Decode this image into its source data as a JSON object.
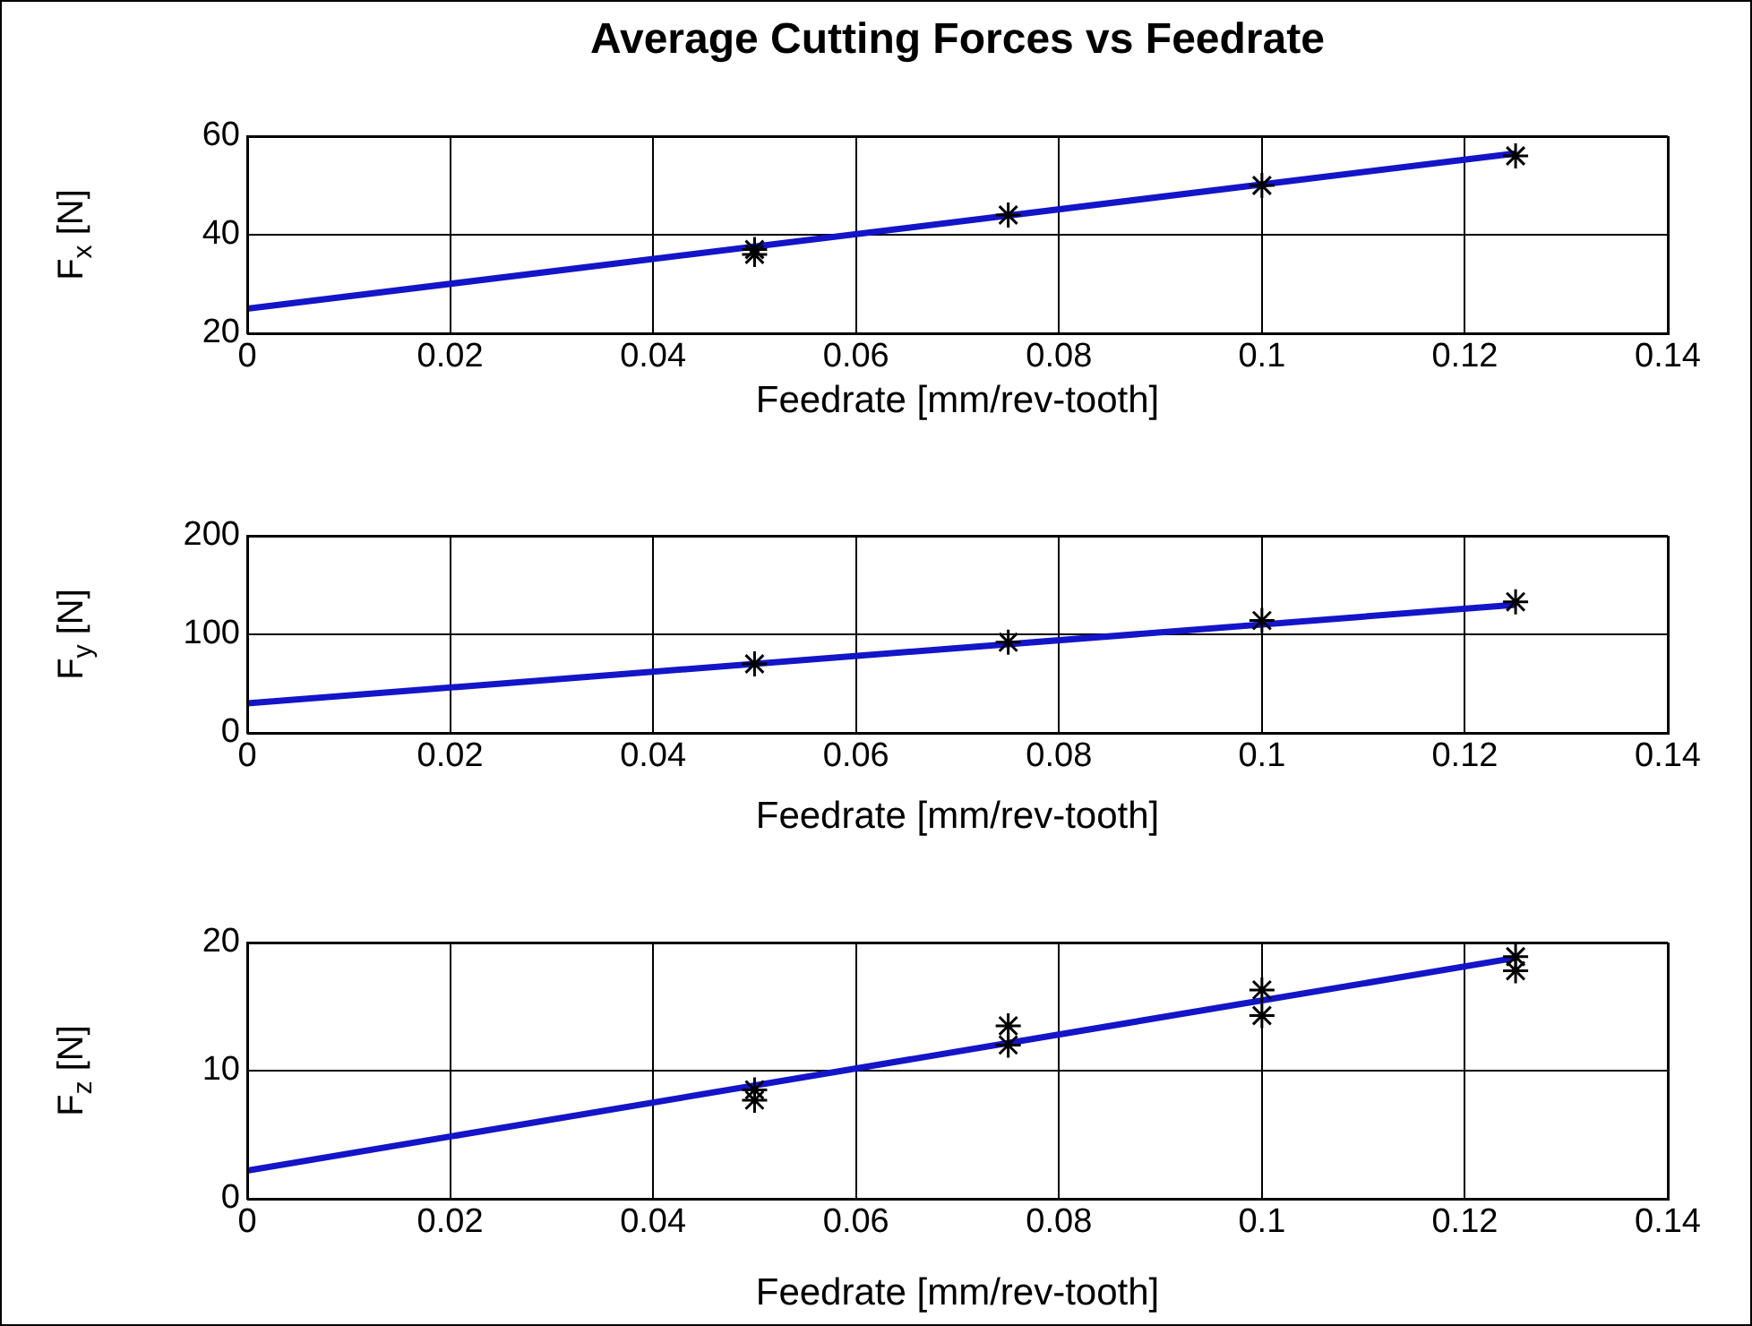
{
  "chart_data": [
    {
      "type": "scatter",
      "title": "Average Cutting Forces vs Feedrate",
      "xlabel": "Feedrate [mm/rev-tooth]",
      "ylabel": "F$_{x}$ [N]",
      "xlim": [
        0,
        0.14
      ],
      "xticks": [
        0,
        0.02,
        0.04,
        0.06,
        0.08,
        0.1,
        0.12,
        0.14
      ],
      "ylim": [
        20,
        60
      ],
      "yticks": [
        20,
        40,
        60
      ],
      "grid": true,
      "legend": false,
      "series": [
        {
          "type": "scatter",
          "color": "#000000",
          "marker": "cross",
          "x": [
            0.05,
            0.05,
            0.075,
            0.1,
            0.125
          ],
          "values": [
            37,
            36,
            44,
            50,
            56
          ]
        },
        {
          "type": "line",
          "color": "#1414c8",
          "marker": "none",
          "line_style": "solid",
          "x": [
            0,
            0.125
          ],
          "values": [
            25,
            56.5
          ]
        }
      ]
    },
    {
      "type": "scatter",
      "xlabel": "Feedrate [mm/rev-tooth]",
      "ylabel": "F$_{y}$ [N]",
      "xlim": [
        0,
        0.14
      ],
      "xticks": [
        0,
        0.02,
        0.04,
        0.06,
        0.08,
        0.1,
        0.12,
        0.14
      ],
      "ylim": [
        0,
        200
      ],
      "yticks": [
        0,
        100,
        200
      ],
      "grid": true,
      "legend": false,
      "series": [
        {
          "type": "scatter",
          "color": "#000000",
          "marker": "cross",
          "x": [
            0.05,
            0.075,
            0.1,
            0.125
          ],
          "values": [
            70,
            92,
            114,
            133
          ]
        },
        {
          "type": "line",
          "color": "#1414c8",
          "marker": "none",
          "line_style": "solid",
          "x": [
            0,
            0.125
          ],
          "values": [
            30,
            130
          ]
        }
      ]
    },
    {
      "type": "scatter",
      "xlabel": "Feedrate [mm/rev-tooth]",
      "ylabel": "F$_{z}$ [N]",
      "xlim": [
        0,
        0.14
      ],
      "xticks": [
        0,
        0.02,
        0.04,
        0.06,
        0.08,
        0.1,
        0.12,
        0.14
      ],
      "ylim": [
        0,
        20
      ],
      "yticks": [
        0,
        10,
        20
      ],
      "grid": true,
      "legend": false,
      "series": [
        {
          "type": "scatter",
          "color": "#000000",
          "marker": "cross",
          "x": [
            0.05,
            0.05,
            0.075,
            0.075,
            0.1,
            0.1,
            0.125,
            0.125
          ],
          "values": [
            8.5,
            7.7,
            13.5,
            12,
            16.3,
            14.3,
            18.9,
            17.8
          ]
        },
        {
          "type": "line",
          "color": "#1414c8",
          "marker": "none",
          "line_style": "solid",
          "x": [
            0,
            0.125
          ],
          "values": [
            2.2,
            18.8
          ]
        }
      ]
    }
  ]
}
